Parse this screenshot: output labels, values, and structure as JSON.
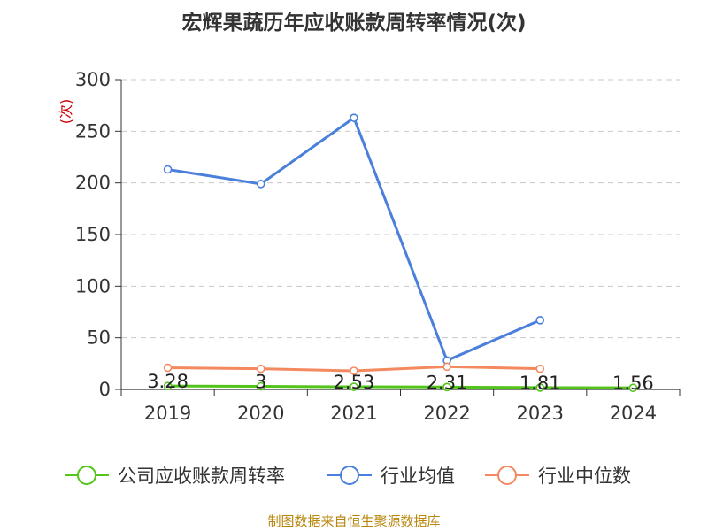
{
  "chart_data": {
    "type": "line",
    "title": "宏辉果蔬历年应收账款周转率情况(次)",
    "ylabel": "(次)",
    "xlabel": "",
    "categories": [
      "2019",
      "2020",
      "2021",
      "2022",
      "2023",
      "2024"
    ],
    "ylim": [
      0,
      300
    ],
    "yticks": [
      0,
      50,
      100,
      150,
      200,
      250,
      300
    ],
    "grid": "horizontal-dashed",
    "legend_position": "bottom",
    "series": [
      {
        "name": "公司应收账款周转率",
        "color": "#52c41a",
        "values": [
          3.28,
          3,
          2.53,
          2.31,
          1.81,
          1.56
        ],
        "labels": [
          "3.28",
          "3",
          "2.53",
          "2.31",
          "1.81",
          "1.56"
        ]
      },
      {
        "name": "行业均值",
        "color": "#4a7fdb",
        "values": [
          213,
          199,
          263,
          28,
          67,
          null
        ]
      },
      {
        "name": "行业中位数",
        "color": "#f4895f",
        "values": [
          21,
          20,
          18,
          22,
          20,
          null
        ]
      }
    ]
  },
  "source_text": "制图数据来自恒生聚源数据库"
}
